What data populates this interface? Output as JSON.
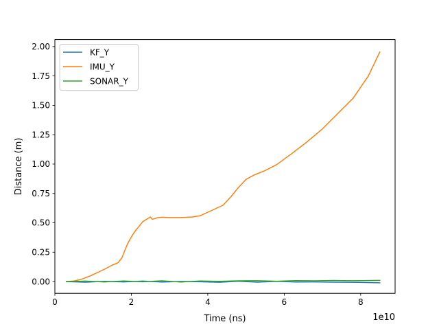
{
  "chart_data": {
    "type": "line",
    "title": "",
    "xlabel": "Time (ns)",
    "ylabel": "Distance (m)",
    "x_offset_label": "1e10",
    "xlim": [
      0.0,
      8.9
    ],
    "ylim": [
      -0.1,
      2.06
    ],
    "x_scale_exponent": 10,
    "xticks": [
      0,
      2,
      4,
      6,
      8
    ],
    "xtick_labels": [
      "0",
      "2",
      "4",
      "6",
      "8"
    ],
    "yticks": [
      0.0,
      0.25,
      0.5,
      0.75,
      1.0,
      1.25,
      1.5,
      1.75,
      2.0
    ],
    "ytick_labels": [
      "0.00",
      "0.25",
      "0.50",
      "0.75",
      "1.00",
      "1.25",
      "1.50",
      "1.75",
      "2.00"
    ],
    "grid": false,
    "legend_position": "top-left",
    "series": [
      {
        "name": "KF_Y",
        "color": "#1f77b4",
        "x": [
          0.3,
          0.8,
          1.3,
          1.8,
          2.3,
          2.8,
          3.3,
          3.8,
          4.3,
          4.8,
          5.3,
          5.8,
          6.3,
          6.8,
          7.3,
          7.8,
          8.5
        ],
        "y": [
          0.0,
          -0.005,
          0.002,
          -0.003,
          0.004,
          -0.004,
          0.001,
          -0.002,
          -0.006,
          0.003,
          -0.005,
          0.002,
          -0.004,
          -0.003,
          -0.005,
          -0.006,
          -0.01
        ]
      },
      {
        "name": "IMU_Y",
        "color": "#ff7f0e",
        "x": [
          0.3,
          0.5,
          0.7,
          0.9,
          1.1,
          1.3,
          1.5,
          1.65,
          1.75,
          1.8,
          1.9,
          2.0,
          2.1,
          2.2,
          2.3,
          2.4,
          2.5,
          2.55,
          2.6,
          2.7,
          2.8,
          3.0,
          3.3,
          3.6,
          3.8,
          4.0,
          4.2,
          4.4,
          4.6,
          4.8,
          5.0,
          5.2,
          5.5,
          5.8,
          6.2,
          6.6,
          7.0,
          7.4,
          7.8,
          8.2,
          8.5
        ],
        "y": [
          0.0,
          0.005,
          0.02,
          0.045,
          0.075,
          0.105,
          0.14,
          0.16,
          0.2,
          0.24,
          0.32,
          0.38,
          0.43,
          0.47,
          0.51,
          0.53,
          0.55,
          0.53,
          0.535,
          0.545,
          0.548,
          0.545,
          0.545,
          0.55,
          0.56,
          0.59,
          0.62,
          0.65,
          0.72,
          0.8,
          0.87,
          0.905,
          0.945,
          0.995,
          1.09,
          1.19,
          1.3,
          1.43,
          1.56,
          1.75,
          1.955
        ]
      },
      {
        "name": "SONAR_Y",
        "color": "#2ca02c",
        "x": [
          0.3,
          0.8,
          1.3,
          1.8,
          2.3,
          2.8,
          3.3,
          3.8,
          4.3,
          4.8,
          5.3,
          5.8,
          6.3,
          6.8,
          7.3,
          7.8,
          8.5
        ],
        "y": [
          0.0,
          0.004,
          -0.003,
          0.005,
          -0.002,
          0.006,
          -0.004,
          0.005,
          0.002,
          0.006,
          0.007,
          0.003,
          0.008,
          0.006,
          0.009,
          0.007,
          0.01
        ]
      }
    ]
  }
}
